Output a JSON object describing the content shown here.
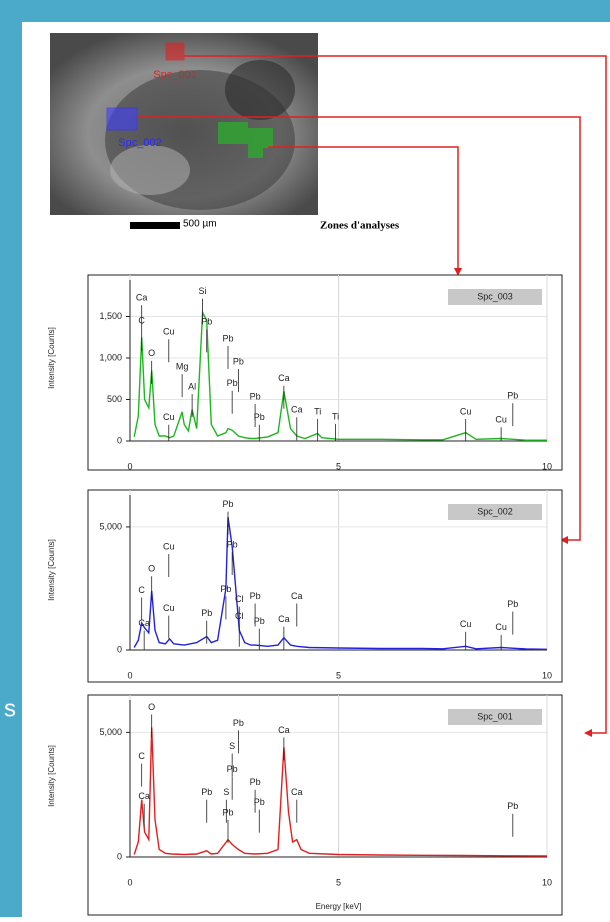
{
  "side_text": "s",
  "image": {
    "spot_labels": [
      "Spc_001",
      "Spc_002"
    ],
    "scale_bar": "500 µm",
    "caption": "Zones d'analyses"
  },
  "chart_data": [
    {
      "type": "line",
      "ylabel": "Intensity [Counts]",
      "xlim": [
        0,
        10
      ],
      "xticks": [
        0,
        5,
        10
      ],
      "ylim": [
        0,
        2000
      ],
      "yticks": [
        0,
        500,
        {
          "value": 1000,
          "label": "1,000"
        },
        {
          "value": 1500,
          "label": "1,500"
        }
      ],
      "grid": true,
      "x": [
        0.1,
        0.2,
        0.28,
        0.35,
        0.45,
        0.52,
        0.6,
        0.7,
        0.85,
        0.95,
        1.05,
        1.25,
        1.3,
        1.4,
        1.49,
        1.6,
        1.74,
        1.84,
        1.95,
        2.1,
        2.3,
        2.35,
        2.45,
        2.6,
        2.75,
        2.9,
        3.0,
        3.3,
        3.55,
        3.69,
        3.85,
        4.0,
        4.2,
        4.5,
        4.6,
        5.0,
        6.0,
        7.0,
        7.5,
        8.05,
        8.3,
        8.9,
        9.5,
        10.0
      ],
      "series": [
        {
          "name": "Spc_003",
          "color": "#1fb51f",
          "values": [
            50,
            300,
            1250,
            500,
            400,
            850,
            200,
            60,
            60,
            40,
            60,
            350,
            200,
            120,
            380,
            150,
            1550,
            1450,
            200,
            60,
            100,
            150,
            130,
            60,
            40,
            30,
            30,
            50,
            100,
            600,
            150,
            60,
            30,
            90,
            40,
            20,
            20,
            15,
            15,
            100,
            20,
            30,
            10,
            10
          ]
        }
      ],
      "annotations": [
        {
          "text": "Ca",
          "x": 0.28,
          "y": 1720
        },
        {
          "text": "C",
          "x": 0.28,
          "y": 1445
        },
        {
          "text": "Cu",
          "x": 0.93,
          "y": 1310
        },
        {
          "text": "O",
          "x": 0.52,
          "y": 1050
        },
        {
          "text": "Mg",
          "x": 1.25,
          "y": 890
        },
        {
          "text": "Al",
          "x": 1.49,
          "y": 650
        },
        {
          "text": "Cu",
          "x": 0.93,
          "y": 280
        },
        {
          "text": "Si",
          "x": 1.74,
          "y": 1800
        },
        {
          "text": "Pb",
          "x": 1.84,
          "y": 1430
        },
        {
          "text": "Pb",
          "x": 2.35,
          "y": 1230
        },
        {
          "text": "Pb",
          "x": 2.6,
          "y": 950
        },
        {
          "text": "Pb",
          "x": 2.45,
          "y": 690
        },
        {
          "text": "Pb",
          "x": 3.0,
          "y": 530
        },
        {
          "text": "Pb",
          "x": 3.1,
          "y": 280
        },
        {
          "text": "Ca",
          "x": 3.69,
          "y": 750
        },
        {
          "text": "Ca",
          "x": 4.0,
          "y": 370
        },
        {
          "text": "Ti",
          "x": 4.5,
          "y": 350
        },
        {
          "text": "Ti",
          "x": 4.93,
          "y": 290
        },
        {
          "text": "Cu",
          "x": 8.05,
          "y": 350
        },
        {
          "text": "Cu",
          "x": 8.9,
          "y": 250
        },
        {
          "text": "Pb",
          "x": 9.18,
          "y": 540
        }
      ]
    },
    {
      "type": "line",
      "ylabel": "Intensity [Counts]",
      "xlim": [
        0,
        10
      ],
      "xticks": [
        0,
        5,
        10
      ],
      "ylim": [
        0,
        6500
      ],
      "yticks": [
        0,
        {
          "value": 5000,
          "label": "5,000"
        }
      ],
      "grid": true,
      "x": [
        0.1,
        0.2,
        0.28,
        0.35,
        0.45,
        0.52,
        0.6,
        0.7,
        0.85,
        0.95,
        1.05,
        1.3,
        1.6,
        1.84,
        1.95,
        2.1,
        2.3,
        2.35,
        2.45,
        2.62,
        2.75,
        2.9,
        3.0,
        3.3,
        3.55,
        3.69,
        3.85,
        4.0,
        4.3,
        5.0,
        6.0,
        7.0,
        7.5,
        8.05,
        8.3,
        8.9,
        9.5,
        10.0
      ],
      "series": [
        {
          "name": "Spc_002",
          "color": "#2222dd",
          "values": [
            100,
            400,
            1100,
            900,
            700,
            2400,
            800,
            300,
            250,
            450,
            250,
            200,
            300,
            550,
            300,
            400,
            2500,
            5400,
            4200,
            800,
            300,
            200,
            200,
            150,
            200,
            500,
            200,
            150,
            100,
            80,
            60,
            60,
            50,
            150,
            50,
            100,
            40,
            30
          ]
        }
      ],
      "annotations": [
        {
          "text": "Pb",
          "x": 2.35,
          "y": 5904
        },
        {
          "text": "Pb",
          "x": 2.45,
          "y": 4264
        },
        {
          "text": "Cu",
          "x": 0.93,
          "y": 4182
        },
        {
          "text": "O",
          "x": 0.52,
          "y": 3280
        },
        {
          "text": "C",
          "x": 0.28,
          "y": 2419
        },
        {
          "text": "Cu",
          "x": 0.93,
          "y": 1681
        },
        {
          "text": "Ca",
          "x": 0.34,
          "y": 1066
        },
        {
          "text": "Pb",
          "x": 1.84,
          "y": 1476
        },
        {
          "text": "Pb",
          "x": 2.3,
          "y": 2460
        },
        {
          "text": "Cl",
          "x": 2.62,
          "y": 2050
        },
        {
          "text": "Cl",
          "x": 2.62,
          "y": 1353
        },
        {
          "text": "Pb",
          "x": 3.0,
          "y": 2173
        },
        {
          "text": "Pb",
          "x": 3.1,
          "y": 1148
        },
        {
          "text": "Ca",
          "x": 3.69,
          "y": 1230
        },
        {
          "text": "Ca",
          "x": 4.0,
          "y": 2173
        },
        {
          "text": "Cu",
          "x": 8.05,
          "y": 1025
        },
        {
          "text": "Cu",
          "x": 8.9,
          "y": 902
        },
        {
          "text": "Pb",
          "x": 9.18,
          "y": 1845
        }
      ]
    },
    {
      "type": "line",
      "ylabel": "Intensity [Counts]",
      "xlabel": "Energy [keV]",
      "xlim": [
        0,
        10
      ],
      "xticks": [
        0,
        5,
        10
      ],
      "ylim": [
        0,
        6500
      ],
      "yticks": [
        0,
        {
          "value": 5000,
          "label": "5,000"
        }
      ],
      "grid": true,
      "x": [
        0.1,
        0.2,
        0.28,
        0.35,
        0.45,
        0.52,
        0.6,
        0.7,
        0.85,
        1.0,
        1.3,
        1.6,
        1.84,
        1.95,
        2.1,
        2.31,
        2.35,
        2.45,
        2.6,
        2.75,
        3.0,
        3.3,
        3.55,
        3.69,
        3.8,
        3.9,
        4.0,
        4.1,
        4.3,
        5.0,
        6.0,
        7.0,
        8.0,
        9.0,
        10.0
      ],
      "series": [
        {
          "name": "Spc_001",
          "color": "#e02020",
          "values": [
            100,
            600,
            2300,
            1000,
            700,
            5200,
            1500,
            300,
            150,
            120,
            100,
            120,
            250,
            120,
            150,
            600,
            700,
            500,
            300,
            150,
            120,
            150,
            300,
            4400,
            1800,
            600,
            700,
            300,
            150,
            100,
            80,
            70,
            60,
            50,
            40
          ]
        }
      ],
      "annotations": [
        {
          "text": "O",
          "x": 0.52,
          "y": 6000
        },
        {
          "text": "C",
          "x": 0.28,
          "y": 4030
        },
        {
          "text": "Ca",
          "x": 0.34,
          "y": 2420
        },
        {
          "text": "Pb",
          "x": 2.6,
          "y": 5360
        },
        {
          "text": "S",
          "x": 2.45,
          "y": 4430
        },
        {
          "text": "Pb",
          "x": 2.45,
          "y": 3500
        },
        {
          "text": "Pb",
          "x": 1.84,
          "y": 2580
        },
        {
          "text": "S",
          "x": 2.31,
          "y": 2580
        },
        {
          "text": "Pb",
          "x": 2.35,
          "y": 1770
        },
        {
          "text": "Pb",
          "x": 3.0,
          "y": 2980
        },
        {
          "text": "Pb",
          "x": 3.1,
          "y": 2180
        },
        {
          "text": "Ca",
          "x": 3.69,
          "y": 5080
        },
        {
          "text": "Ca",
          "x": 4.0,
          "y": 2580
        },
        {
          "text": "Pb",
          "x": 9.18,
          "y": 2015
        }
      ]
    }
  ]
}
